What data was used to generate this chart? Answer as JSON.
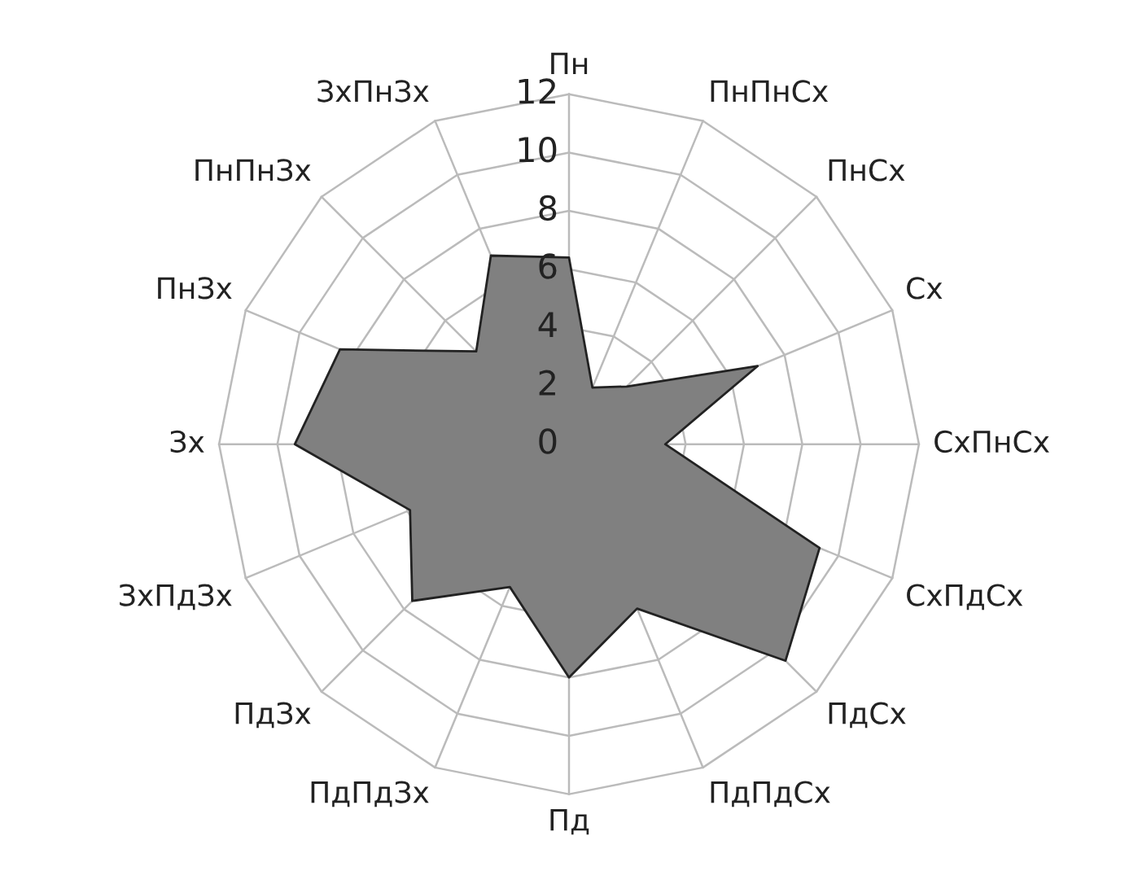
{
  "chart_data": {
    "type": "radar",
    "categories": [
      "Пн",
      "ПнПнСх",
      "ПнСх",
      "Сх",
      "СхПнСх",
      "СхПдСх",
      "ПдСх",
      "ПдПдСх",
      "Пд",
      "ПдПдЗх",
      "ПдЗх",
      "ЗхПдЗх",
      "Зх",
      "ПнЗх",
      "ПнПнЗх",
      "ЗхПнЗх"
    ],
    "series": [
      {
        "color": "#808080",
        "values": [
          6.4,
          2.1,
          2.8,
          7.0,
          3.3,
          9.3,
          10.5,
          6.1,
          8.0,
          5.3,
          7.6,
          5.9,
          9.4,
          8.5,
          4.5,
          7.0
        ]
      }
    ],
    "ylim": [
      0,
      12
    ],
    "yticks": [
      0,
      2,
      4,
      6,
      8,
      10,
      12
    ],
    "grid": true,
    "legend": false
  }
}
